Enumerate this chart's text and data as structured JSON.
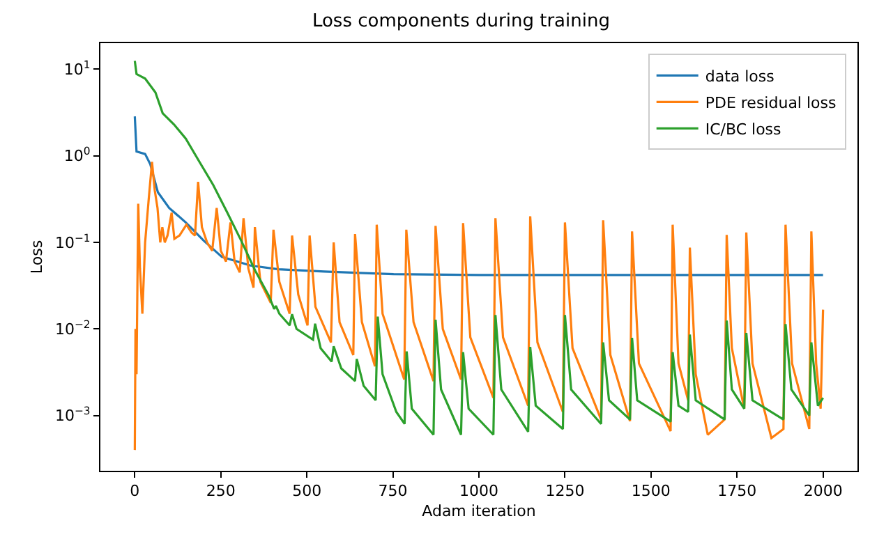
{
  "chart_data": {
    "type": "line",
    "title": "Loss components during training",
    "xlabel": "Adam iteration",
    "ylabel": "Loss",
    "log": "y",
    "legend": "top right",
    "marker": "none",
    "line_style": "solid",
    "xlim": [
      -100,
      2100
    ],
    "xticks": [
      0,
      250,
      500,
      750,
      1000,
      1250,
      1500,
      1750,
      2000
    ],
    "ylim": [
      0.00023,
      20
    ],
    "yticks": [
      {
        "value": 0.001,
        "label": "10$^{−3}$"
      },
      {
        "value": 0.01,
        "label": "10$^{−2}$"
      },
      {
        "value": 0.1,
        "label": "10$^{−1}$"
      },
      {
        "value": 1,
        "label": "10$^{0}$"
      },
      {
        "value": 10,
        "label": "10$^{1}$"
      }
    ],
    "series": [
      {
        "name": "data loss",
        "color": "#1f77b4",
        "x": [
          0,
          5,
          30,
          45,
          67,
          100,
          148,
          200,
          253,
          336,
          417,
          550,
          752,
          1000,
          1500,
          2000
        ],
        "values": [
          2.85,
          1.12,
          1.05,
          0.8,
          0.38,
          0.25,
          0.17,
          0.105,
          0.068,
          0.054,
          0.049,
          0.046,
          0.043,
          0.042,
          0.042,
          0.042
        ]
      },
      {
        "name": "PDE residual loss",
        "color": "#ff7f0e",
        "x": [
          0,
          2,
          5,
          10,
          15,
          22,
          30,
          40,
          50,
          58,
          66,
          74,
          80,
          87,
          95,
          107,
          115,
          130,
          150,
          165,
          175,
          184,
          195,
          210,
          225,
          238,
          250,
          265,
          278,
          290,
          305,
          316,
          330,
          345,
          349,
          365,
          395,
          403,
          420,
          450,
          457,
          475,
          502,
          508,
          525,
          570,
          578,
          595,
          635,
          640,
          660,
          698,
          703,
          720,
          783,
          789,
          810,
          868,
          874,
          895,
          948,
          954,
          975,
          1042,
          1048,
          1070,
          1143,
          1149,
          1170,
          1244,
          1250,
          1272,
          1355,
          1361,
          1382,
          1439,
          1445,
          1465,
          1557,
          1563,
          1580,
          1608,
          1613,
          1630,
          1665,
          1714,
          1720,
          1735,
          1771,
          1777,
          1795,
          1850,
          1885,
          1891,
          1910,
          1960,
          1966,
          1980,
          1993,
          2000
        ],
        "values": [
          0.0004,
          0.01,
          0.003,
          0.28,
          0.05,
          0.015,
          0.1,
          0.3,
          0.85,
          0.4,
          0.25,
          0.1,
          0.15,
          0.1,
          0.12,
          0.22,
          0.11,
          0.12,
          0.16,
          0.13,
          0.12,
          0.5,
          0.15,
          0.1,
          0.08,
          0.25,
          0.08,
          0.06,
          0.17,
          0.06,
          0.045,
          0.19,
          0.05,
          0.03,
          0.15,
          0.035,
          0.02,
          0.14,
          0.035,
          0.015,
          0.12,
          0.025,
          0.011,
          0.12,
          0.018,
          0.007,
          0.1,
          0.012,
          0.005,
          0.125,
          0.012,
          0.0037,
          0.16,
          0.015,
          0.0026,
          0.14,
          0.012,
          0.0025,
          0.155,
          0.01,
          0.0026,
          0.167,
          0.008,
          0.0016,
          0.19,
          0.008,
          0.0013,
          0.2,
          0.007,
          0.0011,
          0.17,
          0.006,
          0.0009,
          0.18,
          0.005,
          0.00086,
          0.134,
          0.004,
          0.00066,
          0.16,
          0.004,
          0.0015,
          0.087,
          0.003,
          0.0006,
          0.0009,
          0.122,
          0.006,
          0.0012,
          0.13,
          0.004,
          0.00055,
          0.0007,
          0.16,
          0.004,
          0.0007,
          0.134,
          0.004,
          0.0012,
          0.0167
        ]
      },
      {
        "name": "IC/BC loss",
        "color": "#2ca02c",
        "x": [
          0,
          5,
          30,
          60,
          81,
          114,
          148,
          188,
          228,
          269,
          309,
          350,
          390,
          405,
          410,
          420,
          450,
          457,
          470,
          518,
          524,
          540,
          572,
          578,
          600,
          640,
          645,
          665,
          700,
          706,
          720,
          760,
          784,
          790,
          805,
          868,
          874,
          890,
          948,
          954,
          970,
          1042,
          1048,
          1065,
          1143,
          1149,
          1165,
          1244,
          1250,
          1268,
          1355,
          1361,
          1378,
          1439,
          1445,
          1460,
          1557,
          1563,
          1580,
          1608,
          1613,
          1630,
          1714,
          1720,
          1735,
          1771,
          1777,
          1795,
          1885,
          1891,
          1908,
          1960,
          1966,
          1985,
          2000
        ],
        "values": [
          12.5,
          8.8,
          7.8,
          5.4,
          3.1,
          2.3,
          1.58,
          0.85,
          0.46,
          0.22,
          0.105,
          0.047,
          0.024,
          0.017,
          0.0185,
          0.015,
          0.011,
          0.0148,
          0.01,
          0.0075,
          0.0115,
          0.006,
          0.0042,
          0.0063,
          0.0035,
          0.0025,
          0.0045,
          0.0022,
          0.0015,
          0.0139,
          0.003,
          0.0011,
          0.0008,
          0.0055,
          0.0012,
          0.0006,
          0.0128,
          0.002,
          0.0006,
          0.0054,
          0.0012,
          0.0006,
          0.0145,
          0.002,
          0.00065,
          0.0062,
          0.0013,
          0.0007,
          0.0145,
          0.002,
          0.0008,
          0.007,
          0.0015,
          0.0009,
          0.0079,
          0.0015,
          0.00085,
          0.0054,
          0.0013,
          0.0011,
          0.0086,
          0.0015,
          0.0009,
          0.0125,
          0.002,
          0.0012,
          0.009,
          0.0015,
          0.0009,
          0.0114,
          0.002,
          0.001,
          0.007,
          0.0013,
          0.0016
        ]
      }
    ]
  }
}
